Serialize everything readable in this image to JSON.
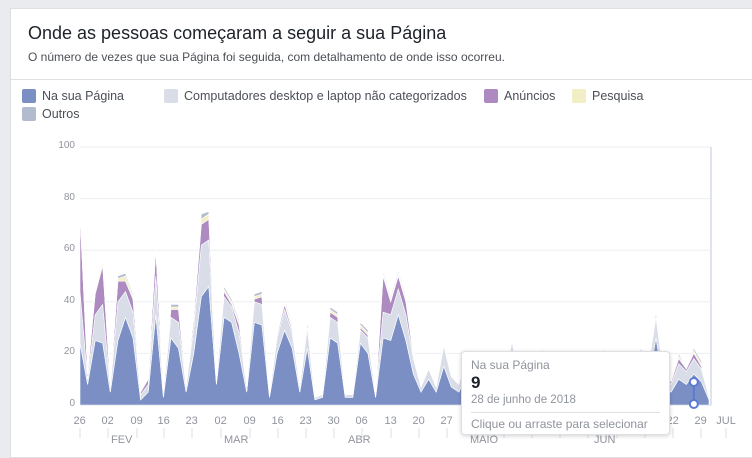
{
  "header": {
    "title": "Onde as pessoas começaram a seguir a sua Página",
    "subtitle": "O número de vezes que sua Página foi seguida, com detalhamento de onde isso ocorreu."
  },
  "legend": [
    {
      "label": "Na sua Página",
      "color": "#7b8fc4"
    },
    {
      "label": "Computadores desktop e laptop não categorizados",
      "color": "#d8dde8"
    },
    {
      "label": "Anúncios",
      "color": "#ad8bc0"
    },
    {
      "label": "Pesquisa",
      "color": "#f2eec5"
    },
    {
      "label": "Outros",
      "color": "#b3bccf"
    }
  ],
  "tooltip": {
    "series": "Na sua Página",
    "value": "9",
    "date": "28 de junho de 2018",
    "hint": "Clique ou arraste para selecionar"
  },
  "chart_data": {
    "type": "area",
    "stacked": true,
    "ylim": [
      0,
      100
    ],
    "yticks": [
      "0",
      "20",
      "40",
      "60",
      "80",
      "100"
    ],
    "xtick_labels": [
      "26",
      "02",
      "09",
      "16",
      "23",
      "02",
      "09",
      "16",
      "23",
      "30",
      "06",
      "13",
      "20",
      "27",
      "04",
      "11",
      "18",
      "25",
      "01",
      "08",
      "15",
      "22",
      "29",
      "JUL"
    ],
    "month_labels": [
      "FEV",
      "MAR",
      "ABR",
      "MAIO",
      "JUN"
    ],
    "series": [
      {
        "name": "Na sua Página",
        "color": "#7b8fc4",
        "values": [
          24,
          8,
          25,
          24,
          5,
          25,
          34,
          26,
          2,
          5,
          35,
          3,
          26,
          22,
          5,
          20,
          42,
          46,
          8,
          34,
          32,
          20,
          5,
          32,
          31,
          3,
          20,
          29,
          22,
          5,
          22,
          2,
          3,
          26,
          24,
          3,
          3,
          24,
          20,
          3,
          26,
          25,
          35,
          25,
          12,
          5,
          10,
          5,
          15,
          7,
          5,
          12,
          8,
          5,
          10,
          8,
          5,
          15,
          5,
          10,
          6,
          12,
          5,
          8,
          10,
          5,
          8,
          10,
          5,
          12,
          8,
          10,
          5,
          8,
          12,
          9,
          26,
          8,
          5,
          10,
          8,
          12,
          9,
          2
        ]
      },
      {
        "name": "Computadores desktop e laptop não categorizados",
        "color": "#d8dde8",
        "values": [
          20,
          2,
          10,
          15,
          2,
          15,
          10,
          10,
          2,
          3,
          15,
          2,
          8,
          10,
          2,
          10,
          20,
          18,
          2,
          8,
          6,
          8,
          2,
          8,
          8,
          1,
          6,
          8,
          6,
          2,
          8,
          1,
          1,
          8,
          8,
          1,
          1,
          5,
          6,
          1,
          10,
          10,
          10,
          10,
          6,
          2,
          4,
          2,
          8,
          4,
          3,
          8,
          4,
          3,
          6,
          5,
          3,
          10,
          3,
          6,
          4,
          8,
          3,
          5,
          7,
          3,
          5,
          6,
          3,
          8,
          5,
          7,
          3,
          5,
          8,
          6,
          8,
          4,
          3,
          6,
          5,
          6,
          5,
          1
        ]
      },
      {
        "name": "Anúncios",
        "color": "#ad8bc0",
        "values": [
          30,
          2,
          8,
          15,
          1,
          8,
          4,
          5,
          1,
          2,
          10,
          1,
          3,
          5,
          1,
          3,
          8,
          8,
          1,
          2,
          1,
          3,
          1,
          1,
          3,
          0,
          1,
          2,
          1,
          0,
          2,
          0,
          0,
          2,
          2,
          0,
          0,
          1,
          1,
          0,
          14,
          5,
          5,
          5,
          1,
          0,
          0,
          0,
          0,
          0,
          0,
          0,
          0,
          0,
          0,
          0,
          0,
          0,
          0,
          0,
          0,
          0,
          0,
          0,
          0,
          0,
          0,
          0,
          0,
          0,
          0,
          0,
          0,
          0,
          0,
          0,
          2,
          1,
          1,
          2,
          1,
          2,
          1,
          0
        ]
      },
      {
        "name": "Pesquisa",
        "color": "#f2eec5",
        "values": [
          1,
          0,
          1,
          2,
          0,
          1,
          2,
          1,
          0,
          0,
          1,
          0,
          1,
          1,
          0,
          1,
          2,
          2,
          0,
          1,
          1,
          1,
          0,
          1,
          1,
          0,
          1,
          1,
          1,
          0,
          1,
          0,
          0,
          1,
          1,
          0,
          0,
          1,
          1,
          0,
          1,
          1,
          1,
          1,
          1,
          0,
          0,
          0,
          1,
          0,
          0,
          1,
          0,
          0,
          1,
          0,
          0,
          1,
          0,
          0,
          0,
          1,
          0,
          0,
          1,
          0,
          0,
          1,
          0,
          1,
          0,
          1,
          0,
          0,
          1,
          0,
          1,
          0,
          0,
          1,
          0,
          1,
          1,
          0
        ]
      },
      {
        "name": "Outros",
        "color": "#b3bccf",
        "values": [
          1,
          0,
          1,
          1,
          0,
          1,
          1,
          1,
          0,
          0,
          1,
          0,
          1,
          1,
          0,
          1,
          2,
          1,
          0,
          1,
          1,
          1,
          0,
          1,
          1,
          0,
          1,
          1,
          1,
          0,
          1,
          0,
          0,
          1,
          1,
          0,
          0,
          1,
          1,
          0,
          1,
          1,
          1,
          1,
          1,
          0,
          0,
          0,
          1,
          0,
          0,
          1,
          0,
          0,
          1,
          0,
          0,
          1,
          0,
          0,
          0,
          1,
          0,
          0,
          1,
          0,
          0,
          1,
          0,
          1,
          0,
          1,
          0,
          0,
          1,
          0,
          1,
          0,
          0,
          1,
          0,
          1,
          1,
          0
        ]
      }
    ]
  }
}
